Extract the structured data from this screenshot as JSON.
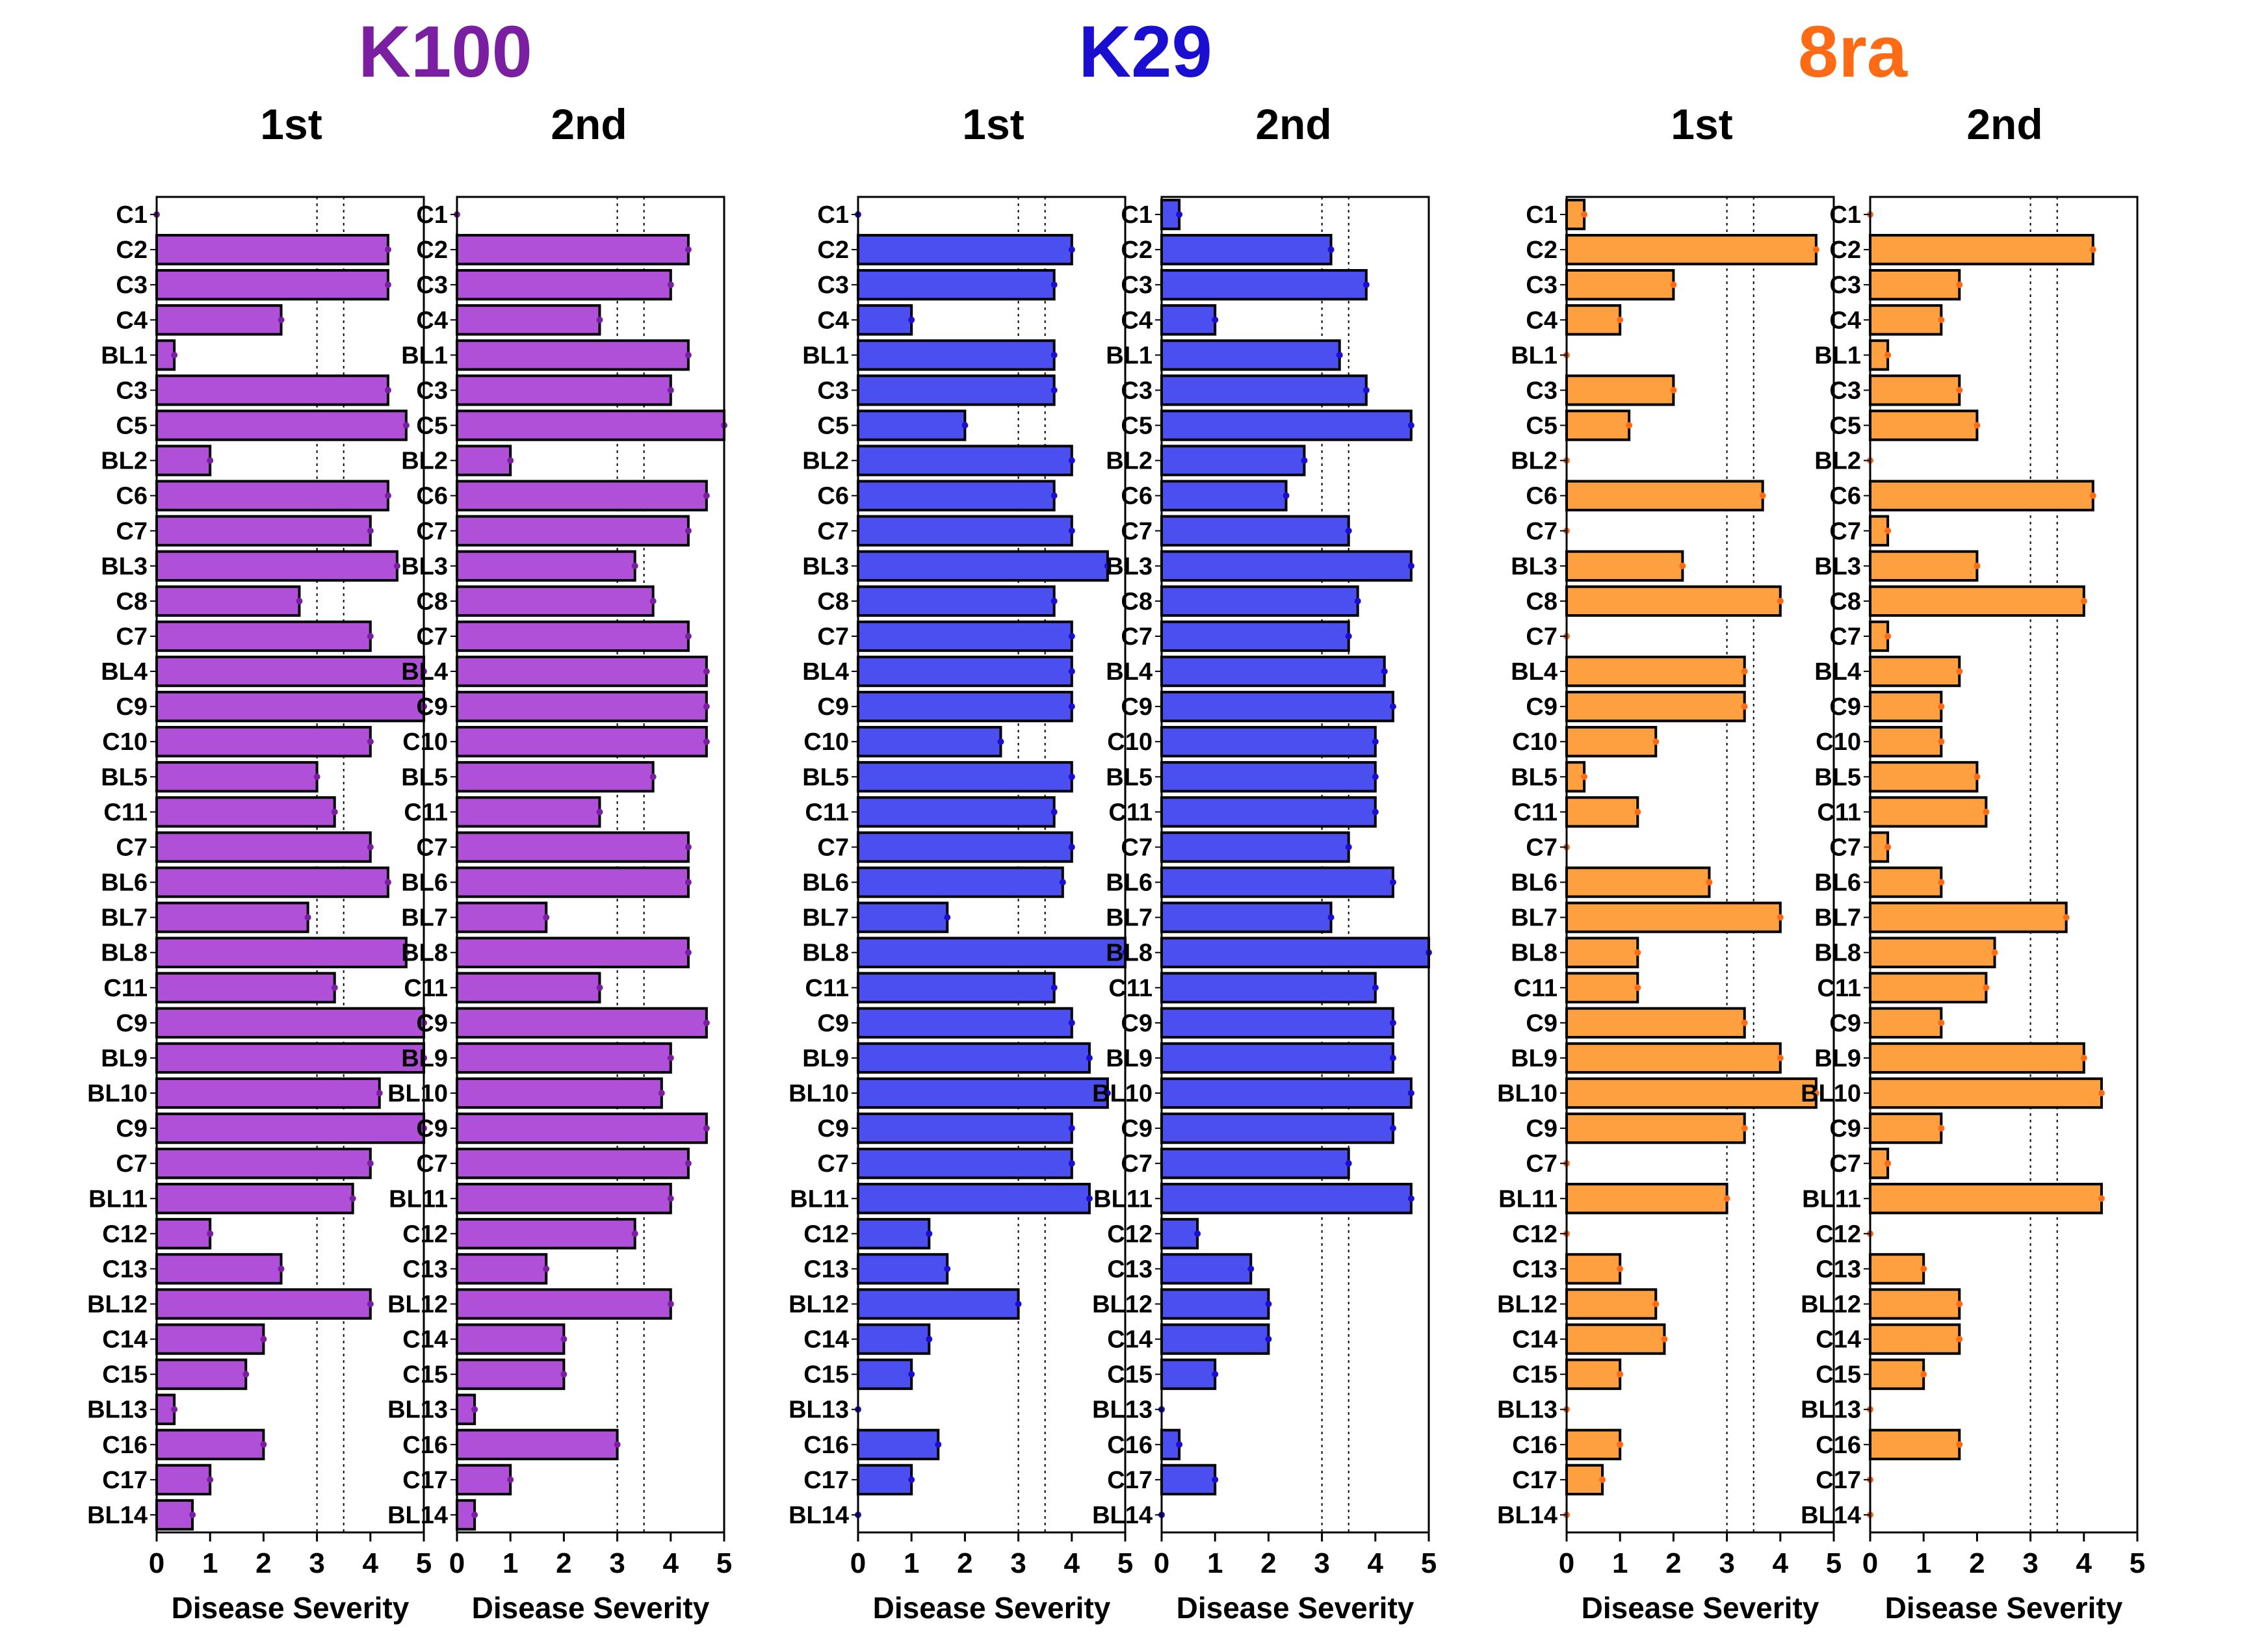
{
  "chart_data": {
    "type": "bar",
    "orientation": "horizontal",
    "categories": [
      "C1",
      "C2",
      "C3",
      "C4",
      "BL1",
      "C3",
      "C5",
      "BL2",
      "C6",
      "C7",
      "BL3",
      "C8",
      "C7",
      "BL4",
      "C9",
      "C10",
      "BL5",
      "C11",
      "C7",
      "BL6",
      "BL7",
      "BL8",
      "C11",
      "C9",
      "BL9",
      "BL10",
      "C9",
      "C7",
      "BL11",
      "C12",
      "C13",
      "BL12",
      "C14",
      "C15",
      "BL13",
      "C16",
      "C17",
      "BL14"
    ],
    "xlabel": "Disease Severity",
    "xlim": [
      0,
      5
    ],
    "xticks": [
      0,
      1,
      2,
      3,
      4,
      5
    ],
    "reference_lines": [
      3,
      3.5
    ],
    "groups": [
      {
        "name": "K100",
        "color": "#7a1fa2",
        "bar_color": "#b04fd8",
        "panels": [
          {
            "title": "1st",
            "values": [
              0,
              4.33,
              4.33,
              2.33,
              0.33,
              4.33,
              4.67,
              1,
              4.33,
              4,
              4.5,
              2.67,
              4,
              5,
              5,
              4,
              3,
              3.33,
              4,
              4.33,
              2.83,
              4.67,
              3.33,
              5,
              5,
              4.17,
              5,
              4,
              3.67,
              1,
              2.33,
              4,
              2,
              1.67,
              0.33,
              2,
              1,
              0.67
            ]
          },
          {
            "title": "2nd",
            "values": [
              0,
              4.33,
              4,
              2.67,
              4.33,
              4,
              5,
              1,
              4.67,
              4.33,
              3.33,
              3.67,
              4.33,
              4.67,
              4.67,
              4.67,
              3.67,
              2.67,
              4.33,
              4.33,
              1.67,
              4.33,
              2.67,
              4.67,
              4,
              3.83,
              4.67,
              4.33,
              4,
              3.33,
              1.67,
              4,
              2,
              2,
              0.33,
              3,
              1,
              0.33
            ]
          }
        ]
      },
      {
        "name": "K29",
        "color": "#1a0fd0",
        "bar_color": "#4c4ff0",
        "panels": [
          {
            "title": "1st",
            "values": [
              0,
              4,
              3.67,
              1,
              3.67,
              3.67,
              2,
              4,
              3.67,
              4,
              4.67,
              3.67,
              4,
              4,
              4,
              2.67,
              4,
              3.67,
              4,
              3.83,
              1.67,
              5,
              3.67,
              4,
              4.33,
              4.67,
              4,
              4,
              4.33,
              1.33,
              1.67,
              3,
              1.33,
              1,
              0,
              1.5,
              1,
              0
            ]
          },
          {
            "title": "2nd",
            "values": [
              0.33,
              3.17,
              3.83,
              1,
              3.33,
              3.83,
              4.67,
              2.67,
              2.33,
              3.5,
              4.67,
              3.67,
              3.5,
              4.17,
              4.33,
              4,
              4,
              4,
              3.5,
              4.33,
              3.17,
              5,
              4,
              4.33,
              4.33,
              4.67,
              4.33,
              3.5,
              4.67,
              0.67,
              1.67,
              2,
              2,
              1,
              0,
              0.33,
              1,
              0
            ]
          }
        ]
      },
      {
        "name": "8ra",
        "color": "#ff6a14",
        "bar_color": "#ffa040",
        "panels": [
          {
            "title": "1st",
            "values": [
              0.33,
              4.67,
              2,
              1,
              0,
              2,
              1.17,
              0,
              3.67,
              0,
              2.17,
              4,
              0,
              3.33,
              3.33,
              1.67,
              0.33,
              1.33,
              0,
              2.67,
              4,
              1.33,
              1.33,
              3.33,
              4,
              4.67,
              3.33,
              0,
              3,
              0,
              1,
              1.67,
              1.83,
              1,
              0,
              1,
              0.67,
              0
            ]
          },
          {
            "title": "2nd",
            "values": [
              0,
              4.17,
              1.67,
              1.33,
              0.33,
              1.67,
              2,
              0,
              4.17,
              0.33,
              2,
              4,
              0.33,
              1.67,
              1.33,
              1.33,
              2,
              2.17,
              0.33,
              1.33,
              3.67,
              2.33,
              2.17,
              1.33,
              4,
              4.33,
              1.33,
              0.33,
              4.33,
              0,
              1,
              1.67,
              1.67,
              1,
              0,
              1.67,
              0,
              0
            ]
          }
        ]
      }
    ]
  }
}
